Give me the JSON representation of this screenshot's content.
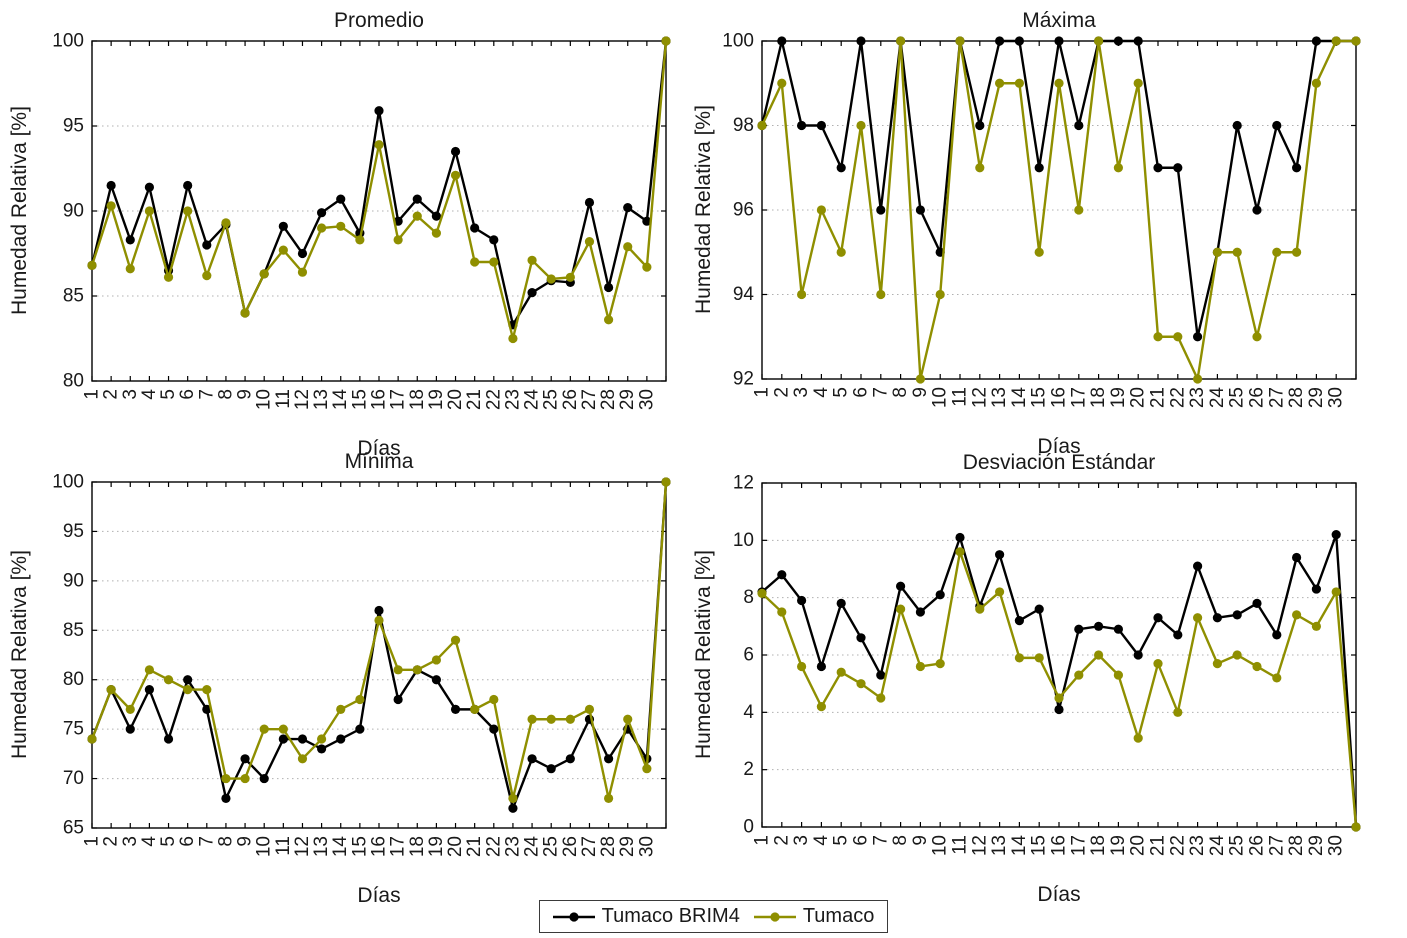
{
  "page": {
    "background": "#ffffff"
  },
  "legend": {
    "position": "bottom-center",
    "items": [
      {
        "label": "Tumaco BRIM4",
        "color": "#000000"
      },
      {
        "label": "Tumaco",
        "color": "#8F8F00"
      }
    ]
  },
  "chart_data": [
    {
      "id": "promedio",
      "type": "line",
      "title": "Promedio",
      "xlabel": "Días",
      "ylabel": "Humedad Relativa [%]",
      "grid": "horizontal-dotted",
      "legend_position": "shared-bottom",
      "xlim": [
        1,
        31
      ],
      "ylim": [
        80,
        100
      ],
      "yticks": [
        80,
        85,
        90,
        95,
        100
      ],
      "x": [
        1,
        2,
        3,
        4,
        5,
        6,
        7,
        8,
        9,
        10,
        11,
        12,
        13,
        14,
        15,
        16,
        17,
        18,
        19,
        20,
        21,
        22,
        23,
        24,
        25,
        26,
        27,
        28,
        29,
        30,
        31
      ],
      "x_tick_labels": [
        "1",
        "2",
        "3",
        "4",
        "5",
        "6",
        "7",
        "8",
        "9",
        "10",
        "11",
        "12",
        "13",
        "14",
        "15",
        "16",
        "17",
        "18",
        "19",
        "20",
        "21",
        "22",
        "23",
        "24",
        "25",
        "26",
        "27",
        "28",
        "29",
        "30"
      ],
      "series": [
        {
          "name": "Tumaco BRIM4",
          "color": "#000000",
          "values": [
            86.8,
            91.5,
            88.3,
            91.4,
            86.5,
            91.5,
            88.0,
            89.2,
            84.0,
            86.3,
            89.1,
            87.5,
            89.9,
            90.7,
            88.7,
            95.9,
            89.4,
            90.7,
            89.7,
            93.5,
            89.0,
            88.3,
            83.3,
            85.2,
            85.9,
            85.8,
            90.5,
            85.5,
            90.2,
            89.4,
            100
          ]
        },
        {
          "name": "Tumaco",
          "color": "#8F8F00",
          "values": [
            86.8,
            90.3,
            86.6,
            90.0,
            86.1,
            90.0,
            86.2,
            89.3,
            84.0,
            86.3,
            87.7,
            86.4,
            89.0,
            89.1,
            88.3,
            93.9,
            88.3,
            89.7,
            88.7,
            92.1,
            87.0,
            87.0,
            82.5,
            87.1,
            86.0,
            86.1,
            88.2,
            83.6,
            87.9,
            86.7,
            100
          ]
        }
      ]
    },
    {
      "id": "maxima",
      "type": "line",
      "title": "Máxima",
      "xlabel": "Días",
      "ylabel": "Humedad Relativa [%]",
      "grid": "horizontal-dotted",
      "legend_position": "shared-bottom",
      "xlim": [
        1,
        31
      ],
      "ylim": [
        92,
        100
      ],
      "yticks": [
        92,
        94,
        96,
        98,
        100
      ],
      "x": [
        1,
        2,
        3,
        4,
        5,
        6,
        7,
        8,
        9,
        10,
        11,
        12,
        13,
        14,
        15,
        16,
        17,
        18,
        19,
        20,
        21,
        22,
        23,
        24,
        25,
        26,
        27,
        28,
        29,
        30,
        31
      ],
      "x_tick_labels": [
        "1",
        "2",
        "3",
        "4",
        "5",
        "6",
        "7",
        "8",
        "9",
        "10",
        "11",
        "12",
        "13",
        "14",
        "15",
        "16",
        "17",
        "18",
        "19",
        "20",
        "21",
        "22",
        "23",
        "24",
        "25",
        "26",
        "27",
        "28",
        "29",
        "30"
      ],
      "series": [
        {
          "name": "Tumaco BRIM4",
          "color": "#000000",
          "values": [
            98,
            100,
            98,
            98,
            97,
            100,
            96,
            100,
            96,
            95,
            100,
            98,
            100,
            100,
            97,
            100,
            98,
            100,
            100,
            100,
            97,
            97,
            93,
            95,
            98,
            96,
            98,
            97,
            100,
            100,
            100
          ]
        },
        {
          "name": "Tumaco",
          "color": "#8F8F00",
          "values": [
            98,
            99,
            94,
            96,
            95,
            98,
            94,
            100,
            92,
            94,
            100,
            97,
            99,
            99,
            95,
            99,
            96,
            100,
            97,
            99,
            93,
            93,
            92,
            95,
            95,
            93,
            95,
            95,
            99,
            100,
            100
          ]
        }
      ]
    },
    {
      "id": "minima",
      "type": "line",
      "title": "Mínima",
      "xlabel": "Días",
      "ylabel": "Humedad Relativa [%]",
      "grid": "horizontal-dotted",
      "legend_position": "shared-bottom",
      "xlim": [
        1,
        31
      ],
      "ylim": [
        65,
        100
      ],
      "yticks": [
        65,
        70,
        75,
        80,
        85,
        90,
        95,
        100
      ],
      "x": [
        1,
        2,
        3,
        4,
        5,
        6,
        7,
        8,
        9,
        10,
        11,
        12,
        13,
        14,
        15,
        16,
        17,
        18,
        19,
        20,
        21,
        22,
        23,
        24,
        25,
        26,
        27,
        28,
        29,
        30,
        31
      ],
      "x_tick_labels": [
        "1",
        "2",
        "3",
        "4",
        "5",
        "6",
        "7",
        "8",
        "9",
        "10",
        "11",
        "12",
        "13",
        "14",
        "15",
        "16",
        "17",
        "18",
        "19",
        "20",
        "21",
        "22",
        "23",
        "24",
        "25",
        "26",
        "27",
        "28",
        "29",
        "30"
      ],
      "series": [
        {
          "name": "Tumaco BRIM4",
          "color": "#000000",
          "values": [
            74,
            79,
            75,
            79,
            74,
            80,
            77,
            68,
            72,
            70,
            74,
            74,
            73,
            74,
            75,
            87,
            78,
            81,
            80,
            77,
            77,
            75,
            67,
            72,
            71,
            72,
            76,
            72,
            75,
            72,
            100
          ]
        },
        {
          "name": "Tumaco",
          "color": "#8F8F00",
          "values": [
            74,
            79,
            77,
            81,
            80,
            79,
            79,
            70,
            70,
            75,
            75,
            72,
            74,
            77,
            78,
            86,
            81,
            81,
            82,
            84,
            77,
            78,
            68,
            76,
            76,
            76,
            77,
            68,
            76,
            71,
            100
          ]
        }
      ]
    },
    {
      "id": "desviacion-estandar",
      "type": "line",
      "title": "Desviación Estándar",
      "xlabel": "Días",
      "ylabel": "Humedad Relativa [%]",
      "grid": "horizontal-dotted",
      "legend_position": "shared-bottom",
      "xlim": [
        1,
        31
      ],
      "ylim": [
        0,
        12
      ],
      "yticks": [
        0,
        2,
        4,
        6,
        8,
        10,
        12
      ],
      "x": [
        1,
        2,
        3,
        4,
        5,
        6,
        7,
        8,
        9,
        10,
        11,
        12,
        13,
        14,
        15,
        16,
        17,
        18,
        19,
        20,
        21,
        22,
        23,
        24,
        25,
        26,
        27,
        28,
        29,
        30,
        31
      ],
      "x_tick_labels": [
        "1",
        "2",
        "3",
        "4",
        "5",
        "6",
        "7",
        "8",
        "9",
        "10",
        "11",
        "12",
        "13",
        "14",
        "15",
        "16",
        "17",
        "18",
        "19",
        "20",
        "21",
        "22",
        "23",
        "24",
        "25",
        "26",
        "27",
        "28",
        "29",
        "30"
      ],
      "series": [
        {
          "name": "Tumaco BRIM4",
          "color": "#000000",
          "values": [
            8.2,
            8.8,
            7.9,
            5.6,
            7.8,
            6.6,
            5.3,
            8.4,
            7.5,
            8.1,
            10.1,
            7.7,
            9.5,
            7.2,
            7.6,
            4.1,
            6.9,
            7.0,
            6.9,
            6.0,
            7.3,
            6.7,
            9.1,
            7.3,
            7.4,
            7.8,
            6.7,
            9.4,
            8.3,
            10.2,
            0
          ]
        },
        {
          "name": "Tumaco",
          "color": "#8F8F00",
          "values": [
            8.15,
            7.5,
            5.6,
            4.2,
            5.4,
            5.0,
            4.5,
            7.6,
            5.6,
            5.7,
            9.6,
            7.6,
            8.2,
            5.9,
            5.9,
            4.5,
            5.3,
            6.0,
            5.3,
            3.1,
            5.7,
            4.0,
            7.3,
            5.7,
            6.0,
            5.6,
            5.2,
            7.4,
            7.0,
            8.2,
            0
          ]
        }
      ]
    }
  ]
}
